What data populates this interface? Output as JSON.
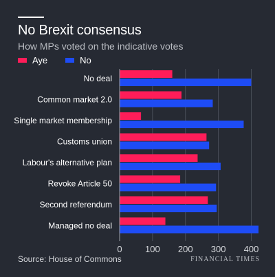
{
  "chart_data": {
    "type": "bar",
    "orientation": "horizontal",
    "title": "No Brexit consensus",
    "subtitle": "How MPs voted on the indicative votes",
    "categories": [
      "No deal",
      "Common market 2.0",
      "Single market membership",
      "Customs union",
      "Labour's alternative plan",
      "Revoke Article 50",
      "Second referendum",
      "Managed no deal"
    ],
    "series": [
      {
        "name": "Aye",
        "color": "#ff1d59",
        "values": [
          160,
          188,
          65,
          264,
          237,
          184,
          268,
          139
        ]
      },
      {
        "name": "No",
        "color": "#1e4cf5",
        "values": [
          400,
          283,
          377,
          272,
          307,
          293,
          295,
          422
        ]
      }
    ],
    "xlim": [
      0,
      422
    ],
    "xticks": [
      0,
      100,
      200,
      300,
      400
    ],
    "grid": true,
    "legend_position": "top-left",
    "source": "Source: House of Commons",
    "brand": "FINANCIAL TIMES"
  }
}
